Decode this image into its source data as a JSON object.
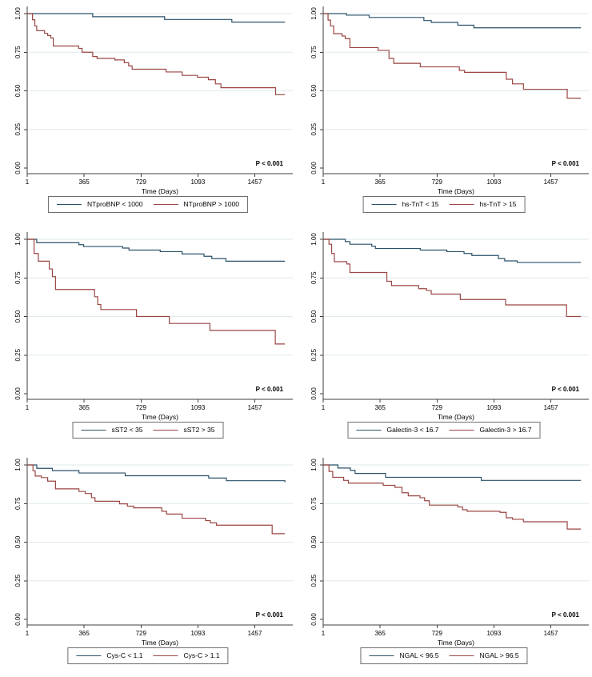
{
  "page": {
    "background": "#ffffff"
  },
  "colors": {
    "low": "#2b5168",
    "high": "#9a4643",
    "grid": "#dfe9ec",
    "axis": "#3f3f3f",
    "tick": "#3f3f3f",
    "text": "#000000",
    "legend_border": "#6e6e6e"
  },
  "axes_common": {
    "x_label": "Time (Days)",
    "x_ticks": [
      {
        "value": 1,
        "label": "1"
      },
      {
        "value": 365,
        "label": "365"
      },
      {
        "value": 729,
        "label": "729"
      },
      {
        "value": 1093,
        "label": "1093"
      },
      {
        "value": 1457,
        "label": "1457"
      }
    ],
    "y_ticks": [
      {
        "value": 0.0,
        "label": "0.00"
      },
      {
        "value": 0.25,
        "label": "0.25"
      },
      {
        "value": 0.5,
        "label": "0.50"
      },
      {
        "value": 0.75,
        "label": "0.75"
      },
      {
        "value": 1.0,
        "label": "1.00"
      }
    ],
    "xlim": [
      1,
      1655
    ],
    "ylim": [
      0,
      1
    ],
    "grid": "horizontal",
    "legend_position": "bottom"
  },
  "chart_data": [
    {
      "type": "line",
      "subtype": "kaplan-meier-step",
      "name": "ntprobnp",
      "xlabel": "Time (Days)",
      "p_label": "P < 0.001",
      "series": [
        {
          "name": "NTproBNP < 1000",
          "key": "low",
          "points": [
            [
              1,
              1
            ],
            [
              420,
              0.98
            ],
            [
              880,
              0.962
            ],
            [
              1310,
              0.945
            ],
            [
              1650,
              0.945
            ]
          ]
        },
        {
          "name": "NTproBNP > 1000",
          "key": "high",
          "points": [
            [
              1,
              1
            ],
            [
              35,
              0.96
            ],
            [
              50,
              0.92
            ],
            [
              62,
              0.89
            ],
            [
              112,
              0.872
            ],
            [
              132,
              0.858
            ],
            [
              152,
              0.842
            ],
            [
              168,
              0.79
            ],
            [
              330,
              0.775
            ],
            [
              352,
              0.75
            ],
            [
              420,
              0.722
            ],
            [
              448,
              0.71
            ],
            [
              562,
              0.7
            ],
            [
              622,
              0.682
            ],
            [
              650,
              0.662
            ],
            [
              672,
              0.64
            ],
            [
              890,
              0.622
            ],
            [
              992,
              0.6
            ],
            [
              1090,
              0.588
            ],
            [
              1160,
              0.572
            ],
            [
              1205,
              0.545
            ],
            [
              1240,
              0.52
            ],
            [
              1590,
              0.475
            ],
            [
              1650,
              0.475
            ]
          ]
        }
      ]
    },
    {
      "type": "line",
      "subtype": "kaplan-meier-step",
      "name": "hs-tnt",
      "xlabel": "Time (Days)",
      "p_label": "P < 0.001",
      "series": [
        {
          "name": "hs-TnT < 15",
          "key": "low",
          "points": [
            [
              1,
              1
            ],
            [
              150,
              0.99
            ],
            [
              295,
              0.975
            ],
            [
              645,
              0.955
            ],
            [
              692,
              0.943
            ],
            [
              862,
              0.925
            ],
            [
              965,
              0.908
            ],
            [
              1650,
              0.908
            ]
          ]
        },
        {
          "name": "hs-TnT > 15",
          "key": "high",
          "points": [
            [
              1,
              1
            ],
            [
              32,
              0.958
            ],
            [
              48,
              0.92
            ],
            [
              68,
              0.87
            ],
            [
              122,
              0.855
            ],
            [
              142,
              0.838
            ],
            [
              172,
              0.78
            ],
            [
              352,
              0.762
            ],
            [
              422,
              0.71
            ],
            [
              452,
              0.678
            ],
            [
              622,
              0.655
            ],
            [
              872,
              0.632
            ],
            [
              905,
              0.62
            ],
            [
              1172,
              0.575
            ],
            [
              1212,
              0.545
            ],
            [
              1282,
              0.51
            ],
            [
              1562,
              0.452
            ],
            [
              1650,
              0.452
            ]
          ]
        }
      ]
    },
    {
      "type": "line",
      "subtype": "kaplan-meier-step",
      "name": "sst2",
      "xlabel": "Time (Days)",
      "p_label": "P < 0.001",
      "series": [
        {
          "name": "sST2 < 35",
          "key": "low",
          "points": [
            [
              1,
              1
            ],
            [
              62,
              0.978
            ],
            [
              332,
              0.965
            ],
            [
              362,
              0.953
            ],
            [
              612,
              0.943
            ],
            [
              652,
              0.93
            ],
            [
              852,
              0.92
            ],
            [
              992,
              0.905
            ],
            [
              1132,
              0.89
            ],
            [
              1182,
              0.875
            ],
            [
              1272,
              0.858
            ],
            [
              1650,
              0.858
            ]
          ]
        },
        {
          "name": "sST2 > 35",
          "key": "high",
          "points": [
            [
              1,
              1
            ],
            [
              45,
              0.908
            ],
            [
              72,
              0.858
            ],
            [
              142,
              0.808
            ],
            [
              162,
              0.758
            ],
            [
              182,
              0.675
            ],
            [
              432,
              0.628
            ],
            [
              452,
              0.578
            ],
            [
              472,
              0.545
            ],
            [
              700,
              0.5
            ],
            [
              910,
              0.455
            ],
            [
              1170,
              0.41
            ],
            [
              1588,
              0.322
            ],
            [
              1650,
              0.322
            ]
          ]
        }
      ]
    },
    {
      "type": "line",
      "subtype": "kaplan-meier-step",
      "name": "galectin3",
      "xlabel": "Time (Days)",
      "p_label": "P < 0.001",
      "series": [
        {
          "name": "Galectin-3 < 16.7",
          "key": "low",
          "points": [
            [
              1,
              1
            ],
            [
              142,
              0.985
            ],
            [
              172,
              0.968
            ],
            [
              312,
              0.955
            ],
            [
              335,
              0.94
            ],
            [
              622,
              0.93
            ],
            [
              792,
              0.92
            ],
            [
              902,
              0.908
            ],
            [
              952,
              0.895
            ],
            [
              1122,
              0.875
            ],
            [
              1162,
              0.86
            ],
            [
              1242,
              0.85
            ],
            [
              1650,
              0.85
            ]
          ]
        },
        {
          "name": "Galectin-3 > 16.7",
          "key": "high",
          "points": [
            [
              1,
              1
            ],
            [
              38,
              0.968
            ],
            [
              55,
              0.908
            ],
            [
              72,
              0.855
            ],
            [
              152,
              0.84
            ],
            [
              172,
              0.785
            ],
            [
              408,
              0.728
            ],
            [
              438,
              0.7
            ],
            [
              612,
              0.68
            ],
            [
              662,
              0.668
            ],
            [
              692,
              0.645
            ],
            [
              878,
              0.61
            ],
            [
              1168,
              0.575
            ],
            [
              1558,
              0.5
            ],
            [
              1650,
              0.5
            ]
          ]
        }
      ]
    },
    {
      "type": "line",
      "subtype": "kaplan-meier-step",
      "name": "cys-c",
      "xlabel": "Time (Days)",
      "p_label": "P < 0.001",
      "series": [
        {
          "name": "Cys-C < 1.1",
          "key": "low",
          "points": [
            [
              1,
              1
            ],
            [
              62,
              0.978
            ],
            [
              162,
              0.963
            ],
            [
              332,
              0.948
            ],
            [
              628,
              0.93
            ],
            [
              1162,
              0.915
            ],
            [
              1275,
              0.898
            ],
            [
              1650,
              0.888
            ]
          ]
        },
        {
          "name": "Cys-C > 1.1",
          "key": "high",
          "points": [
            [
              1,
              1
            ],
            [
              38,
              0.962
            ],
            [
              52,
              0.928
            ],
            [
              92,
              0.918
            ],
            [
              132,
              0.895
            ],
            [
              182,
              0.845
            ],
            [
              332,
              0.828
            ],
            [
              372,
              0.815
            ],
            [
              412,
              0.788
            ],
            [
              435,
              0.765
            ],
            [
              592,
              0.748
            ],
            [
              642,
              0.733
            ],
            [
              682,
              0.722
            ],
            [
              862,
              0.7
            ],
            [
              892,
              0.682
            ],
            [
              992,
              0.655
            ],
            [
              1142,
              0.64
            ],
            [
              1172,
              0.625
            ],
            [
              1212,
              0.61
            ],
            [
              1568,
              0.555
            ],
            [
              1650,
              0.555
            ]
          ]
        }
      ]
    },
    {
      "type": "line",
      "subtype": "kaplan-meier-step",
      "name": "ngal",
      "xlabel": "Time (Days)",
      "p_label": "P < 0.001",
      "series": [
        {
          "name": "NGAL < 96.5",
          "key": "low",
          "points": [
            [
              1,
              1
            ],
            [
              95,
              0.98
            ],
            [
              175,
              0.965
            ],
            [
              205,
              0.945
            ],
            [
              400,
              0.92
            ],
            [
              1012,
              0.9
            ],
            [
              1650,
              0.9
            ]
          ]
        },
        {
          "name": "NGAL > 96.5",
          "key": "high",
          "points": [
            [
              1,
              1
            ],
            [
              38,
              0.958
            ],
            [
              62,
              0.92
            ],
            [
              132,
              0.9
            ],
            [
              162,
              0.882
            ],
            [
              385,
              0.868
            ],
            [
              460,
              0.855
            ],
            [
              505,
              0.82
            ],
            [
              545,
              0.8
            ],
            [
              620,
              0.788
            ],
            [
              650,
              0.768
            ],
            [
              680,
              0.74
            ],
            [
              862,
              0.728
            ],
            [
              892,
              0.71
            ],
            [
              922,
              0.7
            ],
            [
              1132,
              0.693
            ],
            [
              1172,
              0.658
            ],
            [
              1212,
              0.648
            ],
            [
              1282,
              0.632
            ],
            [
              1562,
              0.585
            ],
            [
              1650,
              0.585
            ]
          ]
        }
      ]
    }
  ]
}
